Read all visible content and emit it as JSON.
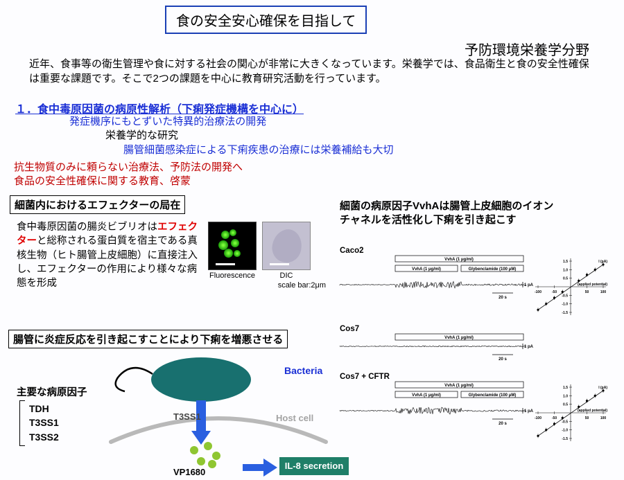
{
  "title": "食の安全安心確保を目指して",
  "subtitle": "予防環境栄養学分野",
  "intro": "近年、食事等の衛生管理や食に対する社会の関心が非常に大きくなっています。栄養学では、食品衛生と食の安全性確保は重要な課題です。そこで2つの課題を中心に教育研究活動を行っています。",
  "sec1": "１．食中毒原因菌の病原性解析（下痢発症機構を中心に）",
  "line1": "発症機序にもとずいた特異的治療法の開発",
  "line2": "栄養学的な研究",
  "line3": "腸管細菌感染症による下痢疾患の治療には栄養補給も大切",
  "red1": "抗生物質のみに頼らない治療法、予防法の開発へ",
  "red2": "食品の安全性確保に関する教育、啓蒙",
  "box_left1": "細菌内におけるエフェクターの局在",
  "box_left2": "腸管に炎症反応を引き起こすことにより下痢を増悪させる",
  "right_head1": "細菌の病原因子VvhAは腸管上皮細胞のイオン",
  "right_head2": "チャネルを活性化し下痢を引き起こす",
  "left_para_pre": "食中毒原因菌の腸炎ビブリオは",
  "left_para_red": "エフェクター",
  "left_para_post": "と総称される蛋白質を宿主である真核生物（ヒト腸管上皮細胞）に直接注入し、エフェクターの作用により様々な病態を形成",
  "micro": {
    "fluo_label": "Fluorescence",
    "dic_label": "DIC",
    "scalebar": "scale bar:2μm",
    "fluo_bg": "#000000",
    "dic_bg": "#c3c0d1",
    "spot_color": "#5cff20"
  },
  "traces": {
    "rows": [
      {
        "label": "Caco2",
        "bars": [
          "VvhA (1 μg/ml)",
          "VvhA (1 μg/ml)",
          "Glybenclamide (100 μM)"
        ],
        "n_bars": 3,
        "iv": true
      },
      {
        "label": "Cos7",
        "bars": [
          "VvhA (1 μg/ml)"
        ],
        "n_bars": 1,
        "iv": false
      },
      {
        "label": "Cos7 + CFTR",
        "bars": [
          "VvhA (1 μg/ml)",
          "VvhA (1 μg/ml)",
          "Glybenclamide (100 μM)"
        ],
        "n_bars": 3,
        "iv": true
      }
    ],
    "x_scale": "20 s",
    "y_scale": "1 pA",
    "iv_xlabel": "(applied potential)",
    "iv_ylabel": "I (pA)",
    "iv_xlim": [
      -100,
      100
    ],
    "iv_ylim": [
      -1.5,
      1.5
    ],
    "iv_xticks": [
      -100,
      -50,
      50,
      100
    ],
    "iv_yticks": [
      -1.5,
      -1.0,
      -0.5,
      0.5,
      1.0,
      1.5
    ],
    "iv_points": [
      [
        -100,
        -1.35
      ],
      [
        -75,
        -1.0
      ],
      [
        -50,
        -0.65
      ],
      [
        -25,
        -0.3
      ],
      [
        25,
        0.35
      ],
      [
        50,
        0.7
      ],
      [
        75,
        1.0
      ],
      [
        100,
        1.3
      ]
    ]
  },
  "pathogen": {
    "title": "主要な病原因子",
    "list": [
      "TDH",
      "T3SS1",
      "T3SS2"
    ]
  },
  "diagram": {
    "bacteria_label": "Bacteria",
    "bacteria_color": "#18706f",
    "t3ss1": "T3SS1",
    "hostcell": "Host cell",
    "hostcell_color": "#b9b9b9",
    "vp": "VP1680",
    "vp_color": "#8fc631",
    "arrow_color": "#2a5fe0",
    "il8": "IL-8 secretion",
    "il8_bg": "#1f7f68",
    "il8_text": "#ffffff"
  },
  "colors": {
    "title_border": "#1a3fb5",
    "blue_text": "#1a2fd5",
    "red_text": "#c00000",
    "emph_red": "#e00000"
  }
}
